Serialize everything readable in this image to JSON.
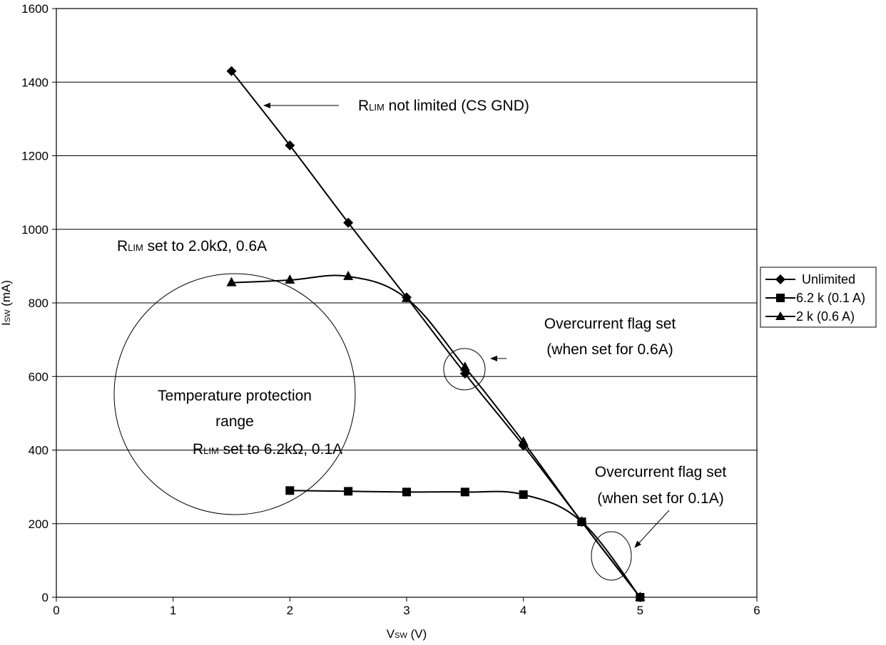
{
  "chart_data": {
    "type": "line",
    "title": "",
    "xlabel": {
      "main": "V",
      "sub": "SW",
      "unit": " (V)"
    },
    "ylabel": {
      "main": "I",
      "sub": "SW",
      "unit": " (mA)"
    },
    "xlim": [
      0,
      6
    ],
    "ylim": [
      0,
      1600
    ],
    "x_ticks": [
      "0",
      "1",
      "2",
      "3",
      "4",
      "5",
      "6"
    ],
    "y_ticks": [
      "0",
      "200",
      "400",
      "600",
      "800",
      "1000",
      "1200",
      "1400",
      "1600"
    ],
    "grid": "horizontal",
    "legend_position": "right",
    "series": [
      {
        "name": "Unlimited",
        "marker": "diamond",
        "x": [
          1.5,
          2.0,
          2.5,
          3.0,
          3.5,
          4.0,
          4.5,
          5.0
        ],
        "y": [
          1430,
          1228,
          1018,
          815,
          608,
          412,
          205,
          0
        ]
      },
      {
        "name": "6.2 k (0.1 A)",
        "marker": "square",
        "x": [
          2.0,
          2.5,
          3.0,
          3.5,
          4.0,
          4.5,
          5.0
        ],
        "y": [
          290,
          288,
          286,
          286,
          279,
          205,
          0
        ]
      },
      {
        "name": "2 k (0.6 A)",
        "marker": "triangle",
        "x": [
          1.5,
          2.0,
          2.5,
          3.0,
          3.5,
          4.0,
          4.5,
          5.0
        ],
        "y": [
          855,
          862,
          872,
          812,
          625,
          422,
          205,
          0
        ]
      }
    ],
    "annotations": {
      "not_limited": {
        "main": "R",
        "sub": "LIM",
        "rest": " not limited (CS GND)"
      },
      "set_2k": {
        "main": "R",
        "sub": "LIM",
        "rest": " set to 2.0kΩ, 0.6A"
      },
      "set_6k": {
        "main": "R",
        "sub": "LIM",
        "rest": " set to 6.2kΩ, 0.1A"
      },
      "temp_line1": "Temperature protection",
      "temp_line2": "range",
      "oc06_line1": "Overcurrent flag set",
      "oc06_line2": "(when set for 0.6A)",
      "oc01_line1": "Overcurrent flag set",
      "oc01_line2": "(when set for 0.1A)"
    }
  }
}
